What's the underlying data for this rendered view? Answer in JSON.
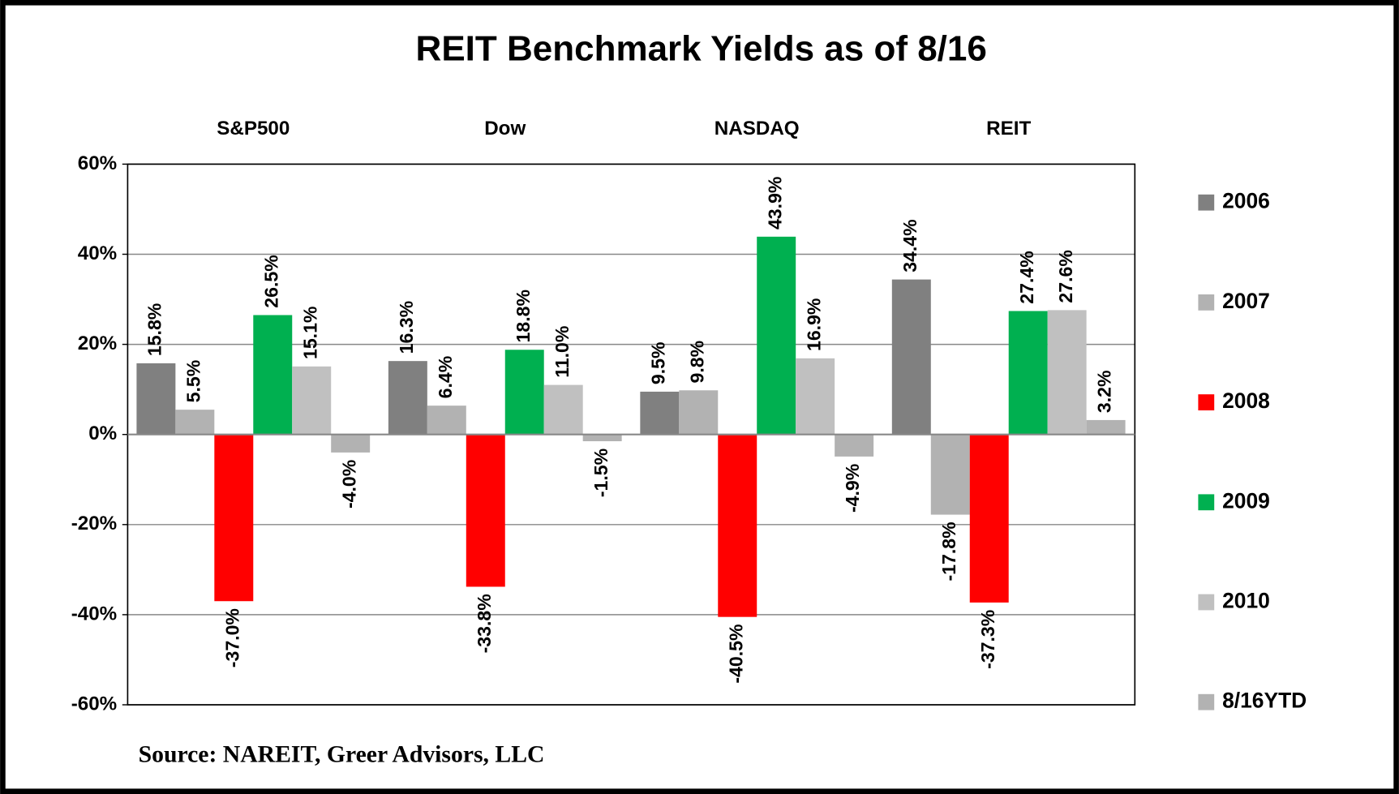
{
  "chart_data": {
    "type": "bar",
    "title": "REIT Benchmark Yields as of 8/16",
    "source": "Source: NAREIT, Greer Advisors, LLC",
    "categories": [
      "S&P500",
      "Dow",
      "NASDAQ",
      "REIT"
    ],
    "series": [
      {
        "name": "2006",
        "color": "#808080",
        "values": [
          15.8,
          16.3,
          9.5,
          34.4
        ],
        "value_labels": [
          "15.8%",
          "16.3%",
          "9.5%",
          "34.4%"
        ]
      },
      {
        "name": "2007",
        "color": "#b2b2b2",
        "values": [
          5.5,
          6.4,
          9.8,
          -17.8
        ],
        "value_labels": [
          "5.5%",
          "6.4%",
          "9.8%",
          "-17.8%"
        ]
      },
      {
        "name": "2008",
        "color": "#ff0000",
        "values": [
          -37.0,
          -33.8,
          -40.5,
          -37.3
        ],
        "value_labels": [
          "-37.0%",
          "-33.8%",
          "-40.5%",
          "-37.3%"
        ]
      },
      {
        "name": "2009",
        "color": "#00b050",
        "values": [
          26.5,
          18.8,
          43.9,
          27.4
        ],
        "value_labels": [
          "26.5%",
          "18.8%",
          "43.9%",
          "27.4%"
        ]
      },
      {
        "name": "2010",
        "color": "#c0c0c0",
        "values": [
          15.1,
          11.0,
          16.9,
          27.6
        ],
        "value_labels": [
          "15.1%",
          "11.0%",
          "16.9%",
          "27.6%"
        ]
      },
      {
        "name": "8/16YTD",
        "color": "#b2b2b2",
        "values": [
          -4.0,
          -1.5,
          -4.9,
          3.2
        ],
        "value_labels": [
          "-4.0%",
          "-1.5%",
          "-4.9%",
          "3.2%"
        ]
      }
    ],
    "ylim": [
      -60,
      60
    ],
    "yticks": [
      {
        "value": -60,
        "label": "-60%"
      },
      {
        "value": -40,
        "label": "-40%"
      },
      {
        "value": -20,
        "label": "-20%"
      },
      {
        "value": 0,
        "label": "0%"
      },
      {
        "value": 20,
        "label": "20%"
      },
      {
        "value": 40,
        "label": "40%"
      },
      {
        "value": 60,
        "label": "60%"
      }
    ],
    "grid": true,
    "legend": "right"
  }
}
